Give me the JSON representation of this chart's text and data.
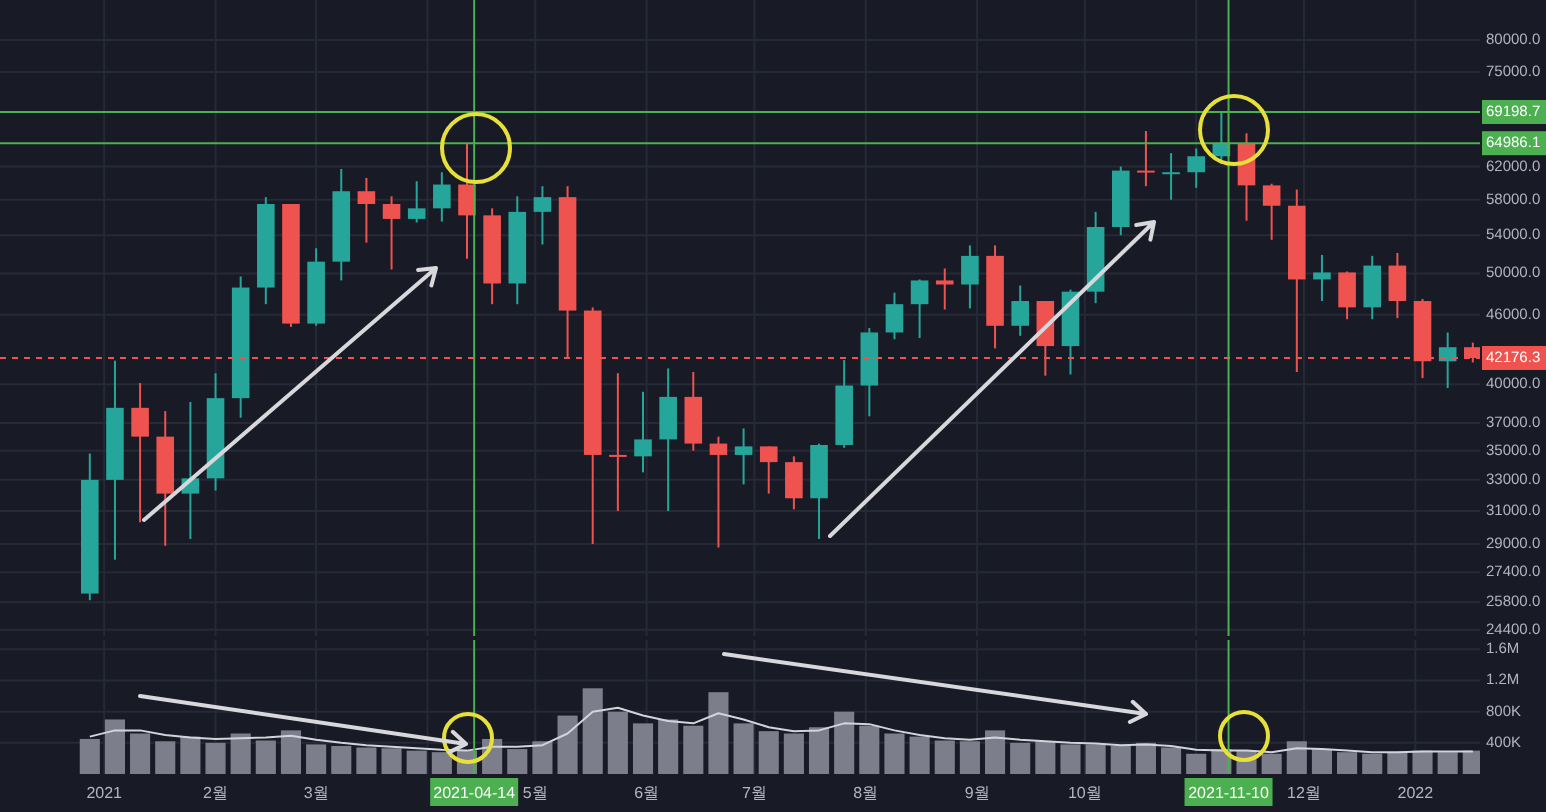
{
  "chart_data": [
    {
      "type": "candlestick",
      "log": true,
      "grid": true,
      "tick_labels": "y",
      "xlim": [
        "2020-12-03",
        "2022-01-19"
      ],
      "ylim": [
        24100,
        86700
      ],
      "yticks": [
        {
          "value": 24400,
          "label": "24400.0"
        },
        {
          "value": 25800,
          "label": "25800.0"
        },
        {
          "value": 27400,
          "label": "27400.0"
        },
        {
          "value": 29000,
          "label": "29000.0"
        },
        {
          "value": 31000,
          "label": "31000.0"
        },
        {
          "value": 33000,
          "label": "33000.0"
        },
        {
          "value": 35000,
          "label": "35000.0"
        },
        {
          "value": 37000,
          "label": "37000.0"
        },
        {
          "value": 40000,
          "label": "40000.0"
        },
        {
          "value": 46000,
          "label": "46000.0"
        },
        {
          "value": 50000,
          "label": "50000.0"
        },
        {
          "value": 54000,
          "label": "54000.0"
        },
        {
          "value": 58000,
          "label": "58000.0"
        },
        {
          "value": 62000,
          "label": "62000.0"
        },
        {
          "value": 75000,
          "label": "75000.0"
        },
        {
          "value": 80000,
          "label": "80000.0"
        }
      ],
      "x": [
        "2020-12-28",
        "2021-01-04",
        "2021-01-11",
        "2021-01-18",
        "2021-01-25",
        "2021-02-01",
        "2021-02-08",
        "2021-02-15",
        "2021-02-22",
        "2021-03-01",
        "2021-03-08",
        "2021-03-15",
        "2021-03-22",
        "2021-03-29",
        "2021-04-05",
        "2021-04-12",
        "2021-04-19",
        "2021-04-26",
        "2021-05-03",
        "2021-05-10",
        "2021-05-17",
        "2021-05-24",
        "2021-05-31",
        "2021-06-07",
        "2021-06-14",
        "2021-06-21",
        "2021-06-28",
        "2021-07-05",
        "2021-07-12",
        "2021-07-19",
        "2021-07-26",
        "2021-08-02",
        "2021-08-09",
        "2021-08-16",
        "2021-08-23",
        "2021-08-30",
        "2021-09-06",
        "2021-09-13",
        "2021-09-20",
        "2021-09-27",
        "2021-10-04",
        "2021-10-11",
        "2021-10-18",
        "2021-10-25",
        "2021-11-01",
        "2021-11-08",
        "2021-11-15",
        "2021-11-22",
        "2021-11-29",
        "2021-12-06",
        "2021-12-13",
        "2021-12-20",
        "2021-12-27",
        "2022-01-03",
        "2022-01-10",
        "2022-01-17"
      ],
      "ohlc": [
        [
          26250,
          34800,
          25900,
          33000
        ],
        [
          33000,
          41950,
          28100,
          38150
        ],
        [
          38150,
          40100,
          30300,
          36000
        ],
        [
          36000,
          37900,
          28900,
          32100
        ],
        [
          32100,
          38600,
          29300,
          33100
        ],
        [
          33100,
          40900,
          32300,
          38900
        ],
        [
          38900,
          49700,
          37400,
          48600
        ],
        [
          48600,
          58300,
          47000,
          57500
        ],
        [
          57500,
          57500,
          44900,
          45200
        ],
        [
          45200,
          52600,
          45000,
          51200
        ],
        [
          51200,
          61700,
          49300,
          59000
        ],
        [
          59000,
          60600,
          53200,
          57500
        ],
        [
          57500,
          58400,
          50400,
          55800
        ],
        [
          55800,
          60200,
          55400,
          57000
        ],
        [
          57000,
          61300,
          55500,
          59800
        ],
        [
          59800,
          64986.1,
          51500,
          56200
        ],
        [
          56200,
          57000,
          47000,
          49000
        ],
        [
          49000,
          58400,
          47000,
          56600
        ],
        [
          56600,
          59600,
          53000,
          58300
        ],
        [
          58300,
          59600,
          42200,
          46400
        ],
        [
          46400,
          46700,
          29000,
          34700
        ],
        [
          34700,
          40900,
          31000,
          34600
        ],
        [
          34600,
          39400,
          33500,
          35800
        ],
        [
          35800,
          41300,
          31000,
          39000
        ],
        [
          39000,
          41000,
          35000,
          35500
        ],
        [
          35500,
          36000,
          28800,
          34700
        ],
        [
          34700,
          36600,
          32700,
          35300
        ],
        [
          35300,
          35300,
          32100,
          34200
        ],
        [
          34200,
          34600,
          31100,
          31800
        ],
        [
          31800,
          35500,
          29300,
          35400
        ],
        [
          35400,
          42000,
          35200,
          39900
        ],
        [
          39900,
          44800,
          37500,
          44400
        ],
        [
          44400,
          48100,
          43800,
          47000
        ],
        [
          47000,
          49400,
          43900,
          49300
        ],
        [
          49300,
          50500,
          46500,
          48900
        ],
        [
          48900,
          52900,
          46600,
          51800
        ],
        [
          51800,
          52900,
          43000,
          45000
        ],
        [
          45000,
          48800,
          44100,
          47300
        ],
        [
          47300,
          47300,
          40700,
          43200
        ],
        [
          43200,
          48400,
          40800,
          48200
        ],
        [
          48200,
          56600,
          47100,
          54900
        ],
        [
          54900,
          62000,
          54000,
          61500
        ],
        [
          61500,
          66600,
          59600,
          61300
        ],
        [
          61300,
          63700,
          58000,
          61300
        ],
        [
          61300,
          64300,
          59400,
          63300
        ],
        [
          63300,
          69198.7,
          62300,
          65000
        ],
        [
          65000,
          66300,
          55600,
          59700
        ],
        [
          59700,
          59900,
          53500,
          57300
        ],
        [
          57300,
          59200,
          41000,
          49400
        ],
        [
          49400,
          51900,
          47300,
          50100
        ],
        [
          50100,
          50200,
          45600,
          46700
        ],
        [
          46700,
          51800,
          45600,
          50800
        ],
        [
          50800,
          52100,
          45700,
          47300
        ],
        [
          47300,
          47500,
          40500,
          41900
        ],
        [
          41900,
          44400,
          39700,
          43100
        ],
        [
          43100,
          43500,
          41800,
          42176.3
        ]
      ],
      "ref_lines": [
        {
          "axis": "y",
          "value": 69198.7,
          "label": "69198.7",
          "color": "#4caf50"
        },
        {
          "axis": "y",
          "value": 64986.1,
          "label": "64986.1",
          "color": "#4caf50"
        },
        {
          "axis": "y",
          "value": 42176.3,
          "label": "42176.3",
          "color": "#ef5350",
          "line_style": "dashed"
        },
        {
          "axis": "x",
          "value": "2021-04-14",
          "color": "#4caf50"
        },
        {
          "axis": "x",
          "value": "2021-11-10",
          "color": "#4caf50"
        }
      ]
    },
    {
      "type": "bar",
      "grid": true,
      "xlim": [
        "2020-12-03",
        "2022-01-19"
      ],
      "xticks": [
        {
          "value": "2021-01-01",
          "label": "2021"
        },
        {
          "value": "2021-02-01",
          "label": "2월"
        },
        {
          "value": "2021-03-01",
          "label": "3월"
        },
        {
          "value": "2021-04-01",
          "label": null
        },
        {
          "value": "2021-05-01",
          "label": "5월"
        },
        {
          "value": "2021-06-01",
          "label": "6월"
        },
        {
          "value": "2021-07-01",
          "label": "7월"
        },
        {
          "value": "2021-08-01",
          "label": "8월"
        },
        {
          "value": "2021-09-01",
          "label": "9월"
        },
        {
          "value": "2021-10-01",
          "label": "10월"
        },
        {
          "value": "2021-11-01",
          "label": null
        },
        {
          "value": "2021-12-01",
          "label": "12월"
        },
        {
          "value": "2022-01-01",
          "label": "2022"
        }
      ],
      "ylim": [
        0,
        1720000
      ],
      "yticks": [
        {
          "value": 400000,
          "label": "400K"
        },
        {
          "value": 800000,
          "label": "800K"
        },
        {
          "value": 1200000,
          "label": "1.2M"
        },
        {
          "value": 1600000,
          "label": "1.6M"
        }
      ],
      "x": [
        "2020-12-28",
        "2021-01-04",
        "2021-01-11",
        "2021-01-18",
        "2021-01-25",
        "2021-02-01",
        "2021-02-08",
        "2021-02-15",
        "2021-02-22",
        "2021-03-01",
        "2021-03-08",
        "2021-03-15",
        "2021-03-22",
        "2021-03-29",
        "2021-04-05",
        "2021-04-12",
        "2021-04-19",
        "2021-04-26",
        "2021-05-03",
        "2021-05-10",
        "2021-05-17",
        "2021-05-24",
        "2021-05-31",
        "2021-06-07",
        "2021-06-14",
        "2021-06-21",
        "2021-06-28",
        "2021-07-05",
        "2021-07-12",
        "2021-07-19",
        "2021-07-26",
        "2021-08-02",
        "2021-08-09",
        "2021-08-16",
        "2021-08-23",
        "2021-08-30",
        "2021-09-06",
        "2021-09-13",
        "2021-09-20",
        "2021-09-27",
        "2021-10-04",
        "2021-10-11",
        "2021-10-18",
        "2021-10-25",
        "2021-11-01",
        "2021-11-08",
        "2021-11-15",
        "2021-11-22",
        "2021-11-29",
        "2021-12-06",
        "2021-12-13",
        "2021-12-20",
        "2021-12-27",
        "2022-01-03",
        "2022-01-10",
        "2022-01-17"
      ],
      "series": [
        {
          "color": "#7c7f8b",
          "values": [
            450000,
            700000,
            520000,
            420000,
            480000,
            400000,
            520000,
            430000,
            560000,
            380000,
            360000,
            340000,
            330000,
            300000,
            280000,
            300000,
            450000,
            320000,
            420000,
            750000,
            1100000,
            800000,
            650000,
            700000,
            620000,
            1050000,
            650000,
            550000,
            520000,
            600000,
            800000,
            620000,
            520000,
            480000,
            430000,
            420000,
            560000,
            400000,
            420000,
            380000,
            380000,
            360000,
            400000,
            340000,
            260000,
            320000,
            300000,
            260000,
            420000,
            320000,
            280000,
            260000,
            280000,
            300000,
            280000,
            300000
          ]
        },
        {
          "type": "line",
          "color": "#d1d4dc",
          "values": [
            480000,
            560000,
            560000,
            500000,
            470000,
            450000,
            460000,
            470000,
            490000,
            440000,
            400000,
            370000,
            350000,
            330000,
            310000,
            300000,
            350000,
            350000,
            370000,
            520000,
            800000,
            850000,
            750000,
            680000,
            650000,
            780000,
            700000,
            600000,
            550000,
            560000,
            650000,
            640000,
            560000,
            500000,
            460000,
            440000,
            470000,
            440000,
            420000,
            400000,
            390000,
            370000,
            380000,
            360000,
            310000,
            300000,
            300000,
            280000,
            330000,
            320000,
            300000,
            280000,
            280000,
            290000,
            290000,
            290000
          ]
        }
      ],
      "ref_lines": [
        {
          "axis": "x",
          "value": "2021-04-14",
          "label": "2021-04-14",
          "color": "#4caf50"
        },
        {
          "axis": "x",
          "value": "2021-11-10",
          "label": "2021-11-10",
          "color": "#4caf50"
        }
      ]
    }
  ]
}
